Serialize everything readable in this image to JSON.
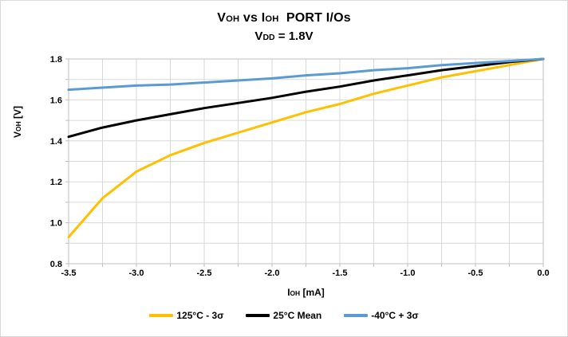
{
  "title": {
    "seg1": "V",
    "sub1": "OH",
    "seg2": " vs ",
    "seg3": "I",
    "sub2": "OH",
    "seg4": "  PORT I/Os"
  },
  "subtitle": {
    "seg1": "V",
    "sub1": "DD",
    "seg2": " = 1.8V"
  },
  "axes": {
    "y_title": {
      "seg1": "V",
      "sub1": "OH",
      "seg2": " [V]"
    },
    "x_title": {
      "seg1": "I",
      "sub1": "OH",
      "seg2": " [mA]"
    }
  },
  "colors": {
    "grid": "#d9d9d9",
    "axis": "#bfbfbf",
    "background": "#ffffff",
    "text": "#000000"
  },
  "chart_data": {
    "type": "line",
    "title": "VOH vs IOH PORT I/Os",
    "subtitle": "VDD = 1.8V",
    "xlabel": "IOH [mA]",
    "ylabel": "VOH [V]",
    "xlim": [
      -3.5,
      0.0
    ],
    "ylim": [
      0.8,
      1.8
    ],
    "x_major_step": 0.5,
    "x_minor_step": 0.25,
    "y_major_step": 0.2,
    "y_minor_step": 0.1,
    "grid": true,
    "legend_position": "bottom",
    "x_tick_labels": [
      "-3.5",
      "-3.0",
      "-2.5",
      "-2.0",
      "-1.5",
      "-1.0",
      "-0.5",
      "0.0"
    ],
    "y_tick_labels": [
      "1.8",
      "1.6",
      "1.4",
      "1.2",
      "1.0",
      "0.8"
    ],
    "x": [
      -3.5,
      -3.25,
      -3.0,
      -2.75,
      -2.5,
      -2.25,
      -2.0,
      -1.75,
      -1.5,
      -1.25,
      -1.0,
      -0.75,
      -0.5,
      -0.25,
      0.0
    ],
    "series": [
      {
        "name": "125°C - 3σ",
        "color": "#FFC000",
        "values": [
          0.93,
          1.12,
          1.25,
          1.33,
          1.39,
          1.44,
          1.49,
          1.54,
          1.58,
          1.63,
          1.67,
          1.71,
          1.74,
          1.77,
          1.8
        ]
      },
      {
        "name": "25°C Mean",
        "color": "#000000",
        "values": [
          1.42,
          1.465,
          1.5,
          1.53,
          1.56,
          1.585,
          1.61,
          1.64,
          1.665,
          1.695,
          1.72,
          1.745,
          1.765,
          1.785,
          1.8
        ]
      },
      {
        "name": "-40°C + 3σ",
        "color": "#5B9BD5",
        "values": [
          1.65,
          1.66,
          1.67,
          1.675,
          1.685,
          1.695,
          1.705,
          1.72,
          1.73,
          1.745,
          1.755,
          1.77,
          1.78,
          1.79,
          1.8
        ]
      }
    ]
  }
}
